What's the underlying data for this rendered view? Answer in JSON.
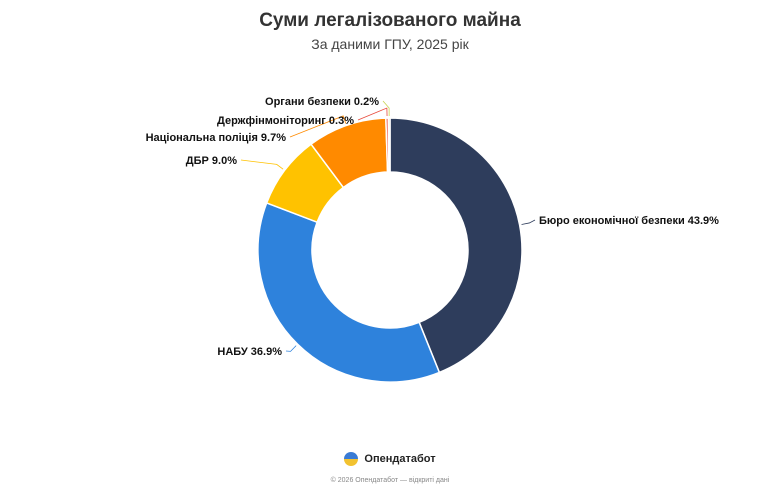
{
  "chart_data": {
    "type": "pie",
    "title": "Суми легалізованого майна",
    "subtitle": "За даними ГПУ, 2025 рік",
    "donut": true,
    "slices": [
      {
        "label": "Бюро економічної безпеки",
        "value": 43.9,
        "display": "43.9%",
        "color": "#2e3d5c"
      },
      {
        "label": "НАБУ",
        "value": 36.9,
        "display": "36.9%",
        "color": "#2e82dc"
      },
      {
        "label": "ДБР",
        "value": 9.0,
        "display": "9.0%",
        "color": "#ffc200"
      },
      {
        "label": "Національна поліція",
        "value": 9.7,
        "display": "9.7%",
        "color": "#ff8a00"
      },
      {
        "label": "Держфінмоніторинг",
        "value": 0.3,
        "display": "0.3%",
        "color": "#e84a3c"
      },
      {
        "label": "Органи безпеки",
        "value": 0.2,
        "display": "0.2%",
        "color": "#c8d44e"
      }
    ]
  },
  "brand": {
    "name": "Опендатабот"
  },
  "footer": "© 2026 Опендатабот — відкриті дані"
}
